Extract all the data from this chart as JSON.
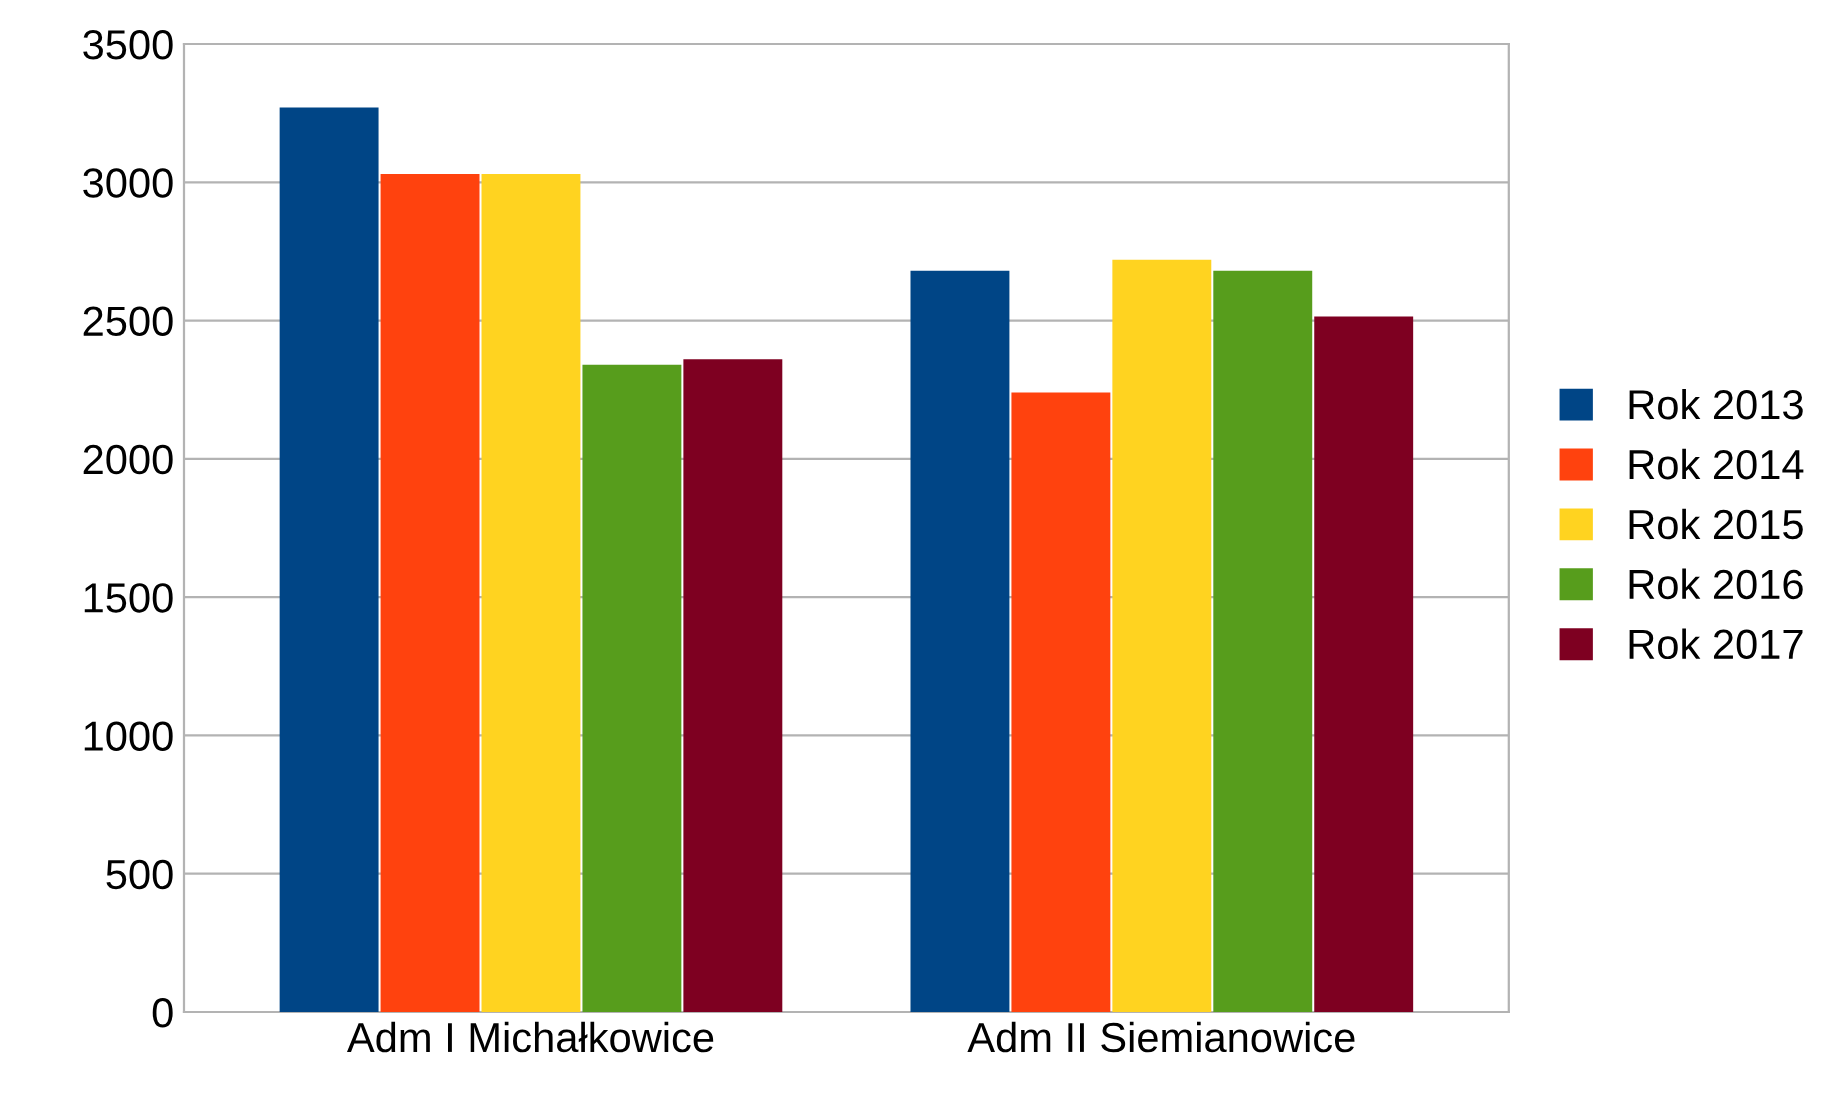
{
  "chart_data": {
    "type": "bar",
    "categories": [
      "Adm I Michałkowice",
      "Adm II Siemianowice"
    ],
    "series": [
      {
        "name": "Rok 2013",
        "color": "#004586",
        "values": [
          3270,
          2680
        ]
      },
      {
        "name": "Rok 2014",
        "color": "#ff420e",
        "values": [
          3030,
          2240
        ]
      },
      {
        "name": "Rok 2015",
        "color": "#ffd320",
        "values": [
          3030,
          2720
        ]
      },
      {
        "name": "Rok 2016",
        "color": "#579d1c",
        "values": [
          2340,
          2680
        ]
      },
      {
        "name": "Rok 2017",
        "color": "#7e0021",
        "values": [
          2360,
          2515
        ]
      }
    ],
    "ylim": [
      0,
      3500
    ],
    "yticks": [
      0,
      500,
      1000,
      1500,
      2000,
      2500,
      3000,
      3500
    ],
    "grid": "y",
    "legend": "right"
  }
}
